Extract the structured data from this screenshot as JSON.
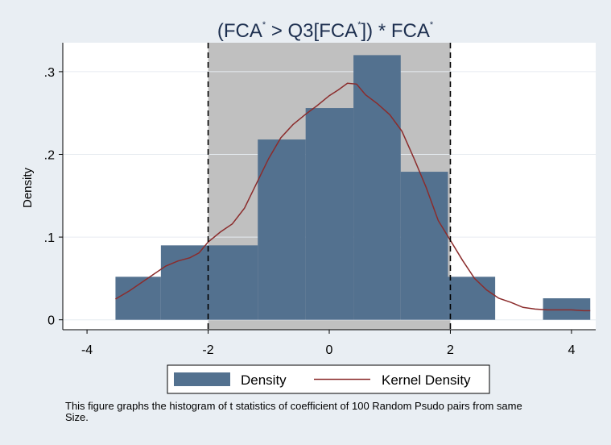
{
  "chart_data": {
    "type": "bar",
    "title": {
      "prefix": "(FCA",
      "mid1": " > Q3[FCA",
      "mid2": "]) * FCA",
      "superscript": "*"
    },
    "ylabel": "Density",
    "xlabel": "",
    "xlim": [
      -4.4,
      4.4
    ],
    "ylim": [
      -0.012,
      0.335
    ],
    "x_ticks": [
      -4,
      -2,
      0,
      2,
      4
    ],
    "x_tick_labels": [
      "-4",
      "-2",
      "0",
      "2",
      "4"
    ],
    "y_ticks": [
      0,
      0.1,
      0.2,
      0.3
    ],
    "y_tick_labels": [
      "0",
      ".1",
      ".2",
      ".3"
    ],
    "shaded_region": {
      "x": [
        -2,
        2
      ],
      "color": "#c0c0c0",
      "boundary_style": "dashed"
    },
    "series": [
      {
        "name": "Density",
        "type": "histogram",
        "color": "#53718f",
        "bins": [
          {
            "start": -3.53,
            "end": -2.78,
            "value": 0.052
          },
          {
            "start": -2.78,
            "end": -1.98,
            "value": 0.09
          },
          {
            "start": -1.98,
            "end": -1.18,
            "value": 0.09
          },
          {
            "start": -1.18,
            "end": -0.39,
            "value": 0.218
          },
          {
            "start": -0.39,
            "end": 0.4,
            "value": 0.256
          },
          {
            "start": 0.4,
            "end": 1.18,
            "value": 0.32
          },
          {
            "start": 1.18,
            "end": 1.96,
            "value": 0.179
          },
          {
            "start": 1.96,
            "end": 2.74,
            "value": 0.052
          },
          {
            "start": 2.74,
            "end": 3.53,
            "value": 0
          },
          {
            "start": 3.53,
            "end": 4.31,
            "value": 0.026
          }
        ]
      },
      {
        "name": "Kernel Density",
        "type": "line",
        "color": "#8b2c2c",
        "points": [
          [
            -3.53,
            0.025
          ],
          [
            -3.3,
            0.035
          ],
          [
            -3.1,
            0.045
          ],
          [
            -2.9,
            0.055
          ],
          [
            -2.7,
            0.065
          ],
          [
            -2.5,
            0.071
          ],
          [
            -2.3,
            0.075
          ],
          [
            -2.15,
            0.081
          ],
          [
            -2.0,
            0.094
          ],
          [
            -1.8,
            0.106
          ],
          [
            -1.6,
            0.116
          ],
          [
            -1.4,
            0.135
          ],
          [
            -1.2,
            0.165
          ],
          [
            -1.0,
            0.195
          ],
          [
            -0.8,
            0.22
          ],
          [
            -0.6,
            0.236
          ],
          [
            -0.4,
            0.248
          ],
          [
            -0.2,
            0.259
          ],
          [
            0.0,
            0.271
          ],
          [
            0.15,
            0.278
          ],
          [
            0.3,
            0.286
          ],
          [
            0.45,
            0.285
          ],
          [
            0.6,
            0.272
          ],
          [
            0.8,
            0.261
          ],
          [
            1.0,
            0.248
          ],
          [
            1.2,
            0.228
          ],
          [
            1.4,
            0.195
          ],
          [
            1.6,
            0.16
          ],
          [
            1.8,
            0.12
          ],
          [
            2.0,
            0.096
          ],
          [
            2.2,
            0.072
          ],
          [
            2.4,
            0.05
          ],
          [
            2.6,
            0.036
          ],
          [
            2.8,
            0.026
          ],
          [
            3.0,
            0.021
          ],
          [
            3.2,
            0.015
          ],
          [
            3.4,
            0.013
          ],
          [
            3.6,
            0.012
          ],
          [
            3.8,
            0.012
          ],
          [
            4.0,
            0.012
          ],
          [
            4.2,
            0.011
          ],
          [
            4.31,
            0.011
          ]
        ]
      }
    ],
    "legend": {
      "placement": "bottom",
      "entries": [
        "Density",
        "Kernel Density"
      ]
    },
    "note": "This figure graphs the histogram of t statistics of coefficient of 100 Random Psudo pairs from same Size."
  }
}
